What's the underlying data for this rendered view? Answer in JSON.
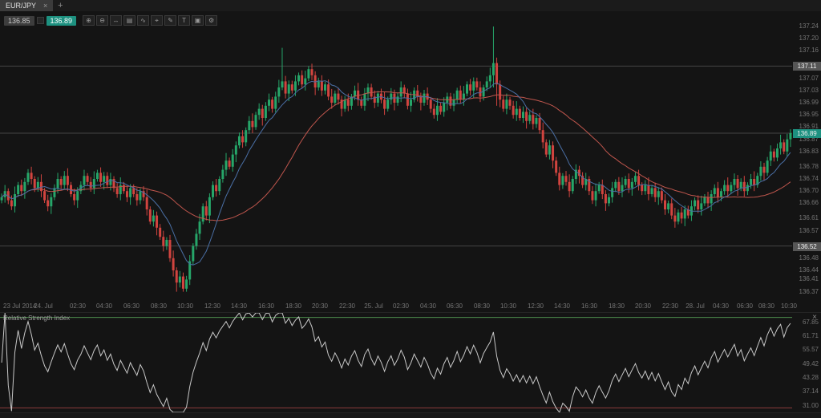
{
  "window": {
    "tabs": [
      {
        "label": "EUR/JPY",
        "close_glyph": "×"
      }
    ],
    "new_tab_glyph": "+"
  },
  "toolbar": {
    "bid": "136.85",
    "ask": "136.89",
    "buttons": [
      {
        "name": "zoom-in-icon",
        "glyph": "⊕"
      },
      {
        "name": "zoom-out-icon",
        "glyph": "⊖"
      },
      {
        "name": "scroll-mode-icon",
        "glyph": "↔"
      },
      {
        "name": "chart-type-icon",
        "glyph": "▤"
      },
      {
        "name": "indicators-icon",
        "glyph": "∿"
      },
      {
        "name": "crosshair-icon",
        "glyph": "⌖"
      },
      {
        "name": "draw-tools-icon",
        "glyph": "✎"
      },
      {
        "name": "text-tool-icon",
        "glyph": "T"
      },
      {
        "name": "snapshot-icon",
        "glyph": "▣"
      },
      {
        "name": "settings-icon",
        "glyph": "⚙"
      }
    ]
  },
  "chart_data": {
    "type": "candlestick",
    "symbol": "EUR/JPY",
    "colors": {
      "up": "#26a669",
      "down": "#d1443f",
      "level_line": "#454545",
      "badge_gray": "#565656",
      "badge_accent": "#1d9180",
      "background": "#141414"
    },
    "price_axis": {
      "max": 137.29,
      "min": 136.34,
      "labels": [
        "137.24",
        "137.20",
        "137.16",
        "137.07",
        "137.03",
        "136.99",
        "136.95",
        "136.91",
        "136.87",
        "136.83",
        "136.78",
        "136.74",
        "136.70",
        "136.66",
        "136.61",
        "136.57",
        "136.48",
        "136.44",
        "136.41",
        "136.37"
      ]
    },
    "levels": [
      {
        "price": 137.11,
        "label": "137.11",
        "style": "gray"
      },
      {
        "price": 136.89,
        "label": "136.89",
        "style": "accent"
      },
      {
        "price": 136.52,
        "label": "136.52",
        "style": "gray"
      }
    ],
    "ma_fast": {
      "type": "sma",
      "period": 10,
      "color": "#4a6fa5",
      "name": "ma-fast-line"
    },
    "ma_slow": {
      "type": "sma",
      "period": 34,
      "color": "#c0564d",
      "name": "ma-slow-line"
    },
    "candles": {
      "first_open": 136.67,
      "wick_pattern": [
        0.012,
        0.02,
        0.009,
        0.016,
        0.025,
        0.01,
        0.018,
        0.013
      ],
      "special": {
        "53": {
          "low": 136.37
        },
        "55": {
          "low": 136.37
        },
        "85": {
          "high": 137.17
        },
        "149": {
          "high": 137.24,
          "low": 137.04
        },
        "150": {
          "low": 136.98
        }
      },
      "closes": [
        136.68,
        136.7,
        136.67,
        136.65,
        136.69,
        136.72,
        136.7,
        136.73,
        136.76,
        136.74,
        136.71,
        136.73,
        136.7,
        136.67,
        136.65,
        136.68,
        136.71,
        136.74,
        136.72,
        136.75,
        136.72,
        136.69,
        136.67,
        136.7,
        136.72,
        136.75,
        136.73,
        136.71,
        136.74,
        136.76,
        136.73,
        136.75,
        136.72,
        136.74,
        136.71,
        136.69,
        136.72,
        136.7,
        136.68,
        136.71,
        136.69,
        136.67,
        136.7,
        136.68,
        136.64,
        136.6,
        136.62,
        136.58,
        136.55,
        136.52,
        136.54,
        136.48,
        136.44,
        136.4,
        136.42,
        136.38,
        136.41,
        136.47,
        136.52,
        136.56,
        136.6,
        136.65,
        136.62,
        136.68,
        136.72,
        136.7,
        136.74,
        136.77,
        136.8,
        136.78,
        136.82,
        136.85,
        136.88,
        136.86,
        136.9,
        136.93,
        136.91,
        136.95,
        136.97,
        136.94,
        136.98,
        137.0,
        136.97,
        137.01,
        137.04,
        137.06,
        137.02,
        137.05,
        137.03,
        137.06,
        137.08,
        137.05,
        137.07,
        137.1,
        137.08,
        137.04,
        137.06,
        137.03,
        137.05,
        137.01,
        136.99,
        137.02,
        137.0,
        136.97,
        137.0,
        136.98,
        137.01,
        137.03,
        137.0,
        136.98,
        137.02,
        137.04,
        137.01,
        136.99,
        137.02,
        137.0,
        136.97,
        137.0,
        137.02,
        136.99,
        137.01,
        137.04,
        137.02,
        136.98,
        137.0,
        137.03,
        137.01,
        136.99,
        137.02,
        137.0,
        136.97,
        136.95,
        136.98,
        136.96,
        136.99,
        137.01,
        136.98,
        137.0,
        137.03,
        137.0,
        137.02,
        137.05,
        137.03,
        137.06,
        137.04,
        137.01,
        137.04,
        137.06,
        137.08,
        137.12,
        137.05,
        137.0,
        136.97,
        137.0,
        136.98,
        136.95,
        136.97,
        136.94,
        136.96,
        136.93,
        136.95,
        136.92,
        136.94,
        136.9,
        136.86,
        136.82,
        136.85,
        136.8,
        136.76,
        136.72,
        136.75,
        136.73,
        136.7,
        136.74,
        136.77,
        136.75,
        136.72,
        136.74,
        136.7,
        136.67,
        136.7,
        136.72,
        136.69,
        136.66,
        136.68,
        136.71,
        136.73,
        136.7,
        136.72,
        136.74,
        136.71,
        136.73,
        136.75,
        136.72,
        136.7,
        136.72,
        136.69,
        136.71,
        136.68,
        136.7,
        136.67,
        136.64,
        136.66,
        136.62,
        136.6,
        136.63,
        136.61,
        136.64,
        136.62,
        136.65,
        136.67,
        136.64,
        136.66,
        136.68,
        136.66,
        136.69,
        136.71,
        136.68,
        136.7,
        136.72,
        136.7,
        136.72,
        136.74,
        136.71,
        136.73,
        136.7,
        136.72,
        136.74,
        136.72,
        136.75,
        136.78,
        136.76,
        136.8,
        136.83,
        136.81,
        136.84,
        136.86,
        136.83,
        136.87,
        136.89
      ]
    },
    "x_axis_labels": [
      {
        "t": "23 Jul 2014",
        "x": 0.004
      },
      {
        "t": "24. Jul",
        "x": 0.055
      },
      {
        "t": "02:30",
        "x": 0.098
      },
      {
        "t": "04:30",
        "x": 0.132
      },
      {
        "t": "06:30",
        "x": 0.166
      },
      {
        "t": "08:30",
        "x": 0.2
      },
      {
        "t": "10:30",
        "x": 0.234
      },
      {
        "t": "12:30",
        "x": 0.268
      },
      {
        "t": "14:30",
        "x": 0.302
      },
      {
        "t": "16:30",
        "x": 0.336
      },
      {
        "t": "18:30",
        "x": 0.37
      },
      {
        "t": "20:30",
        "x": 0.404
      },
      {
        "t": "22:30",
        "x": 0.438
      },
      {
        "t": "25. Jul",
        "x": 0.472
      },
      {
        "t": "02:30",
        "x": 0.506
      },
      {
        "t": "04:30",
        "x": 0.54
      },
      {
        "t": "06:30",
        "x": 0.574
      },
      {
        "t": "08:30",
        "x": 0.608
      },
      {
        "t": "10:30",
        "x": 0.642
      },
      {
        "t": "12:30",
        "x": 0.676
      },
      {
        "t": "14:30",
        "x": 0.71
      },
      {
        "t": "16:30",
        "x": 0.744
      },
      {
        "t": "18:30",
        "x": 0.778
      },
      {
        "t": "20:30",
        "x": 0.812
      },
      {
        "t": "22:30",
        "x": 0.846
      },
      {
        "t": "28. Jul",
        "x": 0.878
      },
      {
        "t": "04:30",
        "x": 0.91
      },
      {
        "t": "06:30",
        "x": 0.94
      },
      {
        "t": "08:30",
        "x": 0.968
      },
      {
        "t": "10:30",
        "x": 0.996
      }
    ],
    "rsi": {
      "title": "Relative Strength Index",
      "close_glyph": "×",
      "period": 14,
      "overbought": 70,
      "oversold": 30,
      "scale_max": 72,
      "scale_min": 28,
      "axis_labels": [
        "67.85",
        "61.71",
        "55.57",
        "49.42",
        "43.28",
        "37.14",
        "31.00"
      ],
      "line_color": "#c8c8c8",
      "overbought_color": "#4c8c4c",
      "oversold_color": "#8c3c3c"
    }
  }
}
